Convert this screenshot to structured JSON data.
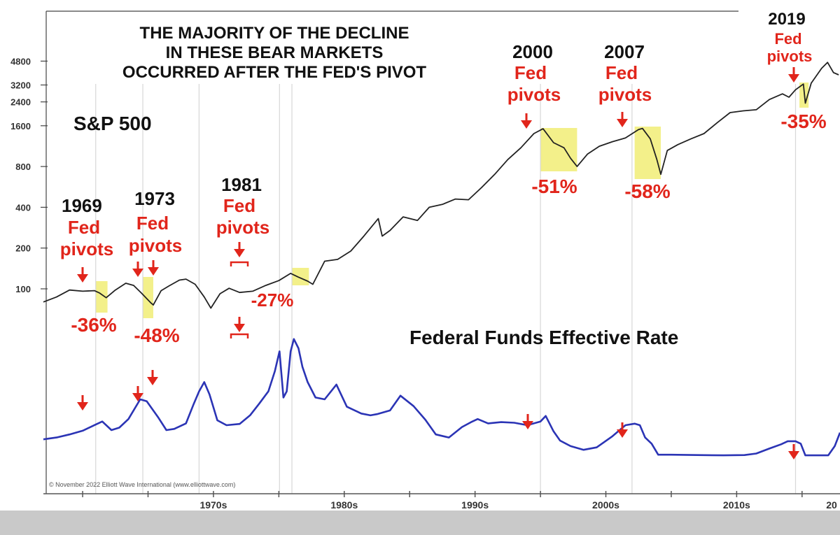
{
  "colors": {
    "background": "#ffffff",
    "frame": "#c9c9c9",
    "sp500_line": "#222222",
    "fedfunds_line": "#2b34b5",
    "highlight": "#f3f08a",
    "annotation_red": "#e1251b",
    "axis": "#555555",
    "gridline": "#d7d7d7"
  },
  "chart_data": [
    {
      "type": "line",
      "name": "sp500-panel",
      "title_lines": [
        "THE MAJORITY OF THE DECLINE",
        "IN THESE BEAR MARKETS",
        "OCCURRED AFTER THE FED'S PIVOT"
      ],
      "label": "S&P 500",
      "y_scale": "log",
      "y_ticks": [
        {
          "value": 100,
          "label": "100"
        },
        {
          "value": 200,
          "label": "200"
        },
        {
          "value": 400,
          "label": "400"
        },
        {
          "value": 800,
          "label": "800"
        },
        {
          "value": 1600,
          "label": "1600"
        },
        {
          "value": 2400,
          "label": "2400"
        },
        {
          "value": 3200,
          "label": "3200"
        },
        {
          "value": 4800,
          "label": "4800"
        }
      ],
      "series": [
        {
          "x": [
            1962.0,
            1963,
            1964,
            1965,
            1965.9,
            1966.3,
            1966.8,
            1967.5,
            1968.3,
            1968.9,
            1969.5,
            1970.2,
            1970.4,
            1971,
            1971.6,
            1972.4,
            1972.9,
            1973.6,
            1974.3,
            1974.8,
            1975.5,
            1976.2,
            1977,
            1978,
            1979,
            1980,
            1980.9,
            1981.5,
            1982.2,
            1982.6,
            1983.5,
            1984.5,
            1985.5,
            1986.5,
            1987.6,
            1987.9,
            1988.5,
            1989.5,
            1990.6,
            1991.5,
            1992.5,
            1993.5,
            1994.5,
            1995.5,
            1996.5,
            1997.5,
            1998.5,
            1999.5,
            2000.2,
            2001,
            2001.8,
            2002.3,
            2002.8,
            2003.6,
            2004.5,
            2005.5,
            2006.5,
            2007.5,
            2007.8,
            2008.4,
            2008.9,
            2009.2,
            2009.7,
            2010.5,
            2011.5,
            2012.5,
            2013.5,
            2014.5,
            2015.5,
            2016.5,
            2017.5,
            2018.5,
            2019.0,
            2019.5,
            2020.1,
            2020.25,
            2020.7,
            2021.5,
            2021.95,
            2022.4,
            2022.8
          ],
          "values": [
            80,
            87,
            98,
            96,
            97,
            93,
            86,
            98,
            110,
            106,
            93,
            79,
            76,
            97,
            105,
            116,
            118,
            108,
            87,
            72,
            92,
            101,
            94,
            96,
            106,
            115,
            130,
            122,
            114,
            108,
            160,
            165,
            190,
            245,
            330,
            245,
            270,
            340,
            320,
            400,
            420,
            460,
            455,
            560,
            700,
            900,
            1100,
            1400,
            1520,
            1200,
            1100,
            920,
            800,
            990,
            1130,
            1220,
            1300,
            1500,
            1530,
            1280,
            900,
            700,
            1050,
            1160,
            1280,
            1400,
            1680,
            2000,
            2060,
            2100,
            2500,
            2750,
            2600,
            2950,
            3250,
            2350,
            3300,
            4250,
            4700,
            3950,
            3800
          ]
        }
      ],
      "pivots": [
        {
          "year": "1969",
          "label": "Fed pivots",
          "decline": "-36%"
        },
        {
          "year": "1973",
          "label": "pivots",
          "label_top": "Fed",
          "decline": "-48%"
        },
        {
          "year": "1981",
          "label": "Fed pivots",
          "decline": "-27%"
        },
        {
          "year": "2000",
          "label": "Fed pivots",
          "decline": "-51%"
        },
        {
          "year": "2007",
          "label": "Fed pivots",
          "decline": "-58%"
        },
        {
          "year": "2019",
          "label": "Fed pivots",
          "decline": "-35%"
        }
      ]
    },
    {
      "type": "line",
      "name": "fed-funds-panel",
      "title": "Federal Funds Effective Rate",
      "series": [
        {
          "x": [
            1962.0,
            1963,
            1964,
            1965,
            1966,
            1966.5,
            1967.2,
            1967.8,
            1968.5,
            1969.4,
            1969.9,
            1970.8,
            1971.4,
            1972,
            1972.9,
            1973.5,
            1973.9,
            1974.3,
            1974.7,
            1975.3,
            1976,
            1977,
            1977.8,
            1978.5,
            1979.2,
            1979.7,
            1980.05,
            1980.35,
            1980.6,
            1980.9,
            1981.15,
            1981.5,
            1981.8,
            1982.2,
            1982.8,
            1983.5,
            1984.4,
            1985.2,
            1986.3,
            1987,
            1987.5,
            1988.5,
            1989.3,
            1990.3,
            1991.2,
            1992,
            1993,
            1994,
            1994.7,
            1995.2,
            1996,
            1997,
            1998,
            1999,
            2000.0,
            2000.4,
            2001,
            2001.5,
            2002.3,
            2003.3,
            2004.3,
            2005.5,
            2006.5,
            2007.2,
            2007.6,
            2008.0,
            2008.5,
            2009,
            2010,
            2012,
            2014,
            2015.6,
            2016.5,
            2017.5,
            2018.4,
            2018.9,
            2019.5,
            2019.9,
            2020.25,
            2021,
            2022.0,
            2022.5,
            2022.9
          ],
          "values": [
            2.7,
            3.0,
            3.5,
            4.1,
            5.1,
            5.6,
            4.2,
            4.6,
            6.0,
            9.2,
            8.9,
            6.2,
            4.2,
            4.4,
            5.3,
            8.5,
            10.5,
            12.0,
            10.0,
            5.8,
            5.0,
            5.2,
            6.6,
            8.5,
            10.5,
            13.8,
            17.0,
            9.5,
            10.5,
            17.0,
            19.0,
            17.5,
            14.5,
            12.0,
            9.5,
            9.2,
            11.6,
            8.0,
            6.9,
            6.6,
            6.8,
            7.4,
            9.8,
            8.1,
            5.9,
            3.5,
            3.0,
            4.7,
            5.5,
            6.0,
            5.3,
            5.5,
            5.4,
            5.0,
            5.6,
            6.5,
            4.0,
            2.5,
            1.6,
            1.0,
            1.4,
            3.2,
            5.0,
            5.25,
            5.0,
            3.0,
            2.0,
            0.2,
            0.2,
            0.15,
            0.1,
            0.15,
            0.4,
            1.2,
            1.9,
            2.4,
            2.4,
            2.0,
            0.1,
            0.1,
            0.1,
            1.6,
            3.8
          ]
        }
      ],
      "pivot_markers": [
        1966.0,
        1969.6,
        1973.9,
        1980.05,
        1981.0,
        2000.0,
        2007.0,
        2019.5
      ]
    }
  ],
  "x_axis": {
    "labels": [
      "1970s",
      "1980s",
      "1990s",
      "2000s",
      "2010s",
      "20"
    ]
  },
  "credit": "© November 2022 Elliott Wave International (www.elliottwave.com)"
}
